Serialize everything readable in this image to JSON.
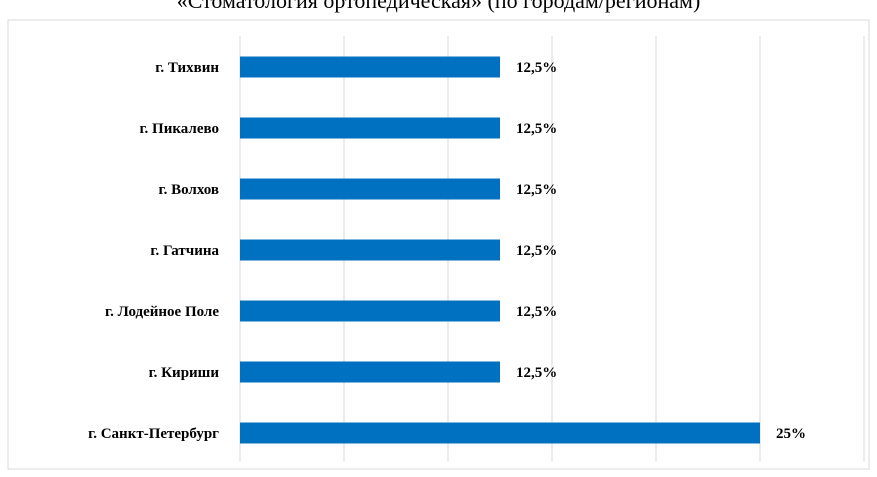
{
  "chart_data": {
    "type": "bar",
    "orientation": "horizontal",
    "title": "«Стоматология ортопедическая» (по городам/регионам)",
    "categories": [
      "г. Тихвин",
      "г. Пикалево",
      "г. Волхов",
      "г. Гатчина",
      "г. Лодейное Поле",
      "г. Кириши",
      "г. Санкт-Петербург"
    ],
    "values": [
      12.5,
      12.5,
      12.5,
      12.5,
      12.5,
      12.5,
      25
    ],
    "data_labels": [
      "12,5%",
      "12,5%",
      "12,5%",
      "12,5%",
      "12,5%",
      "12,5%",
      "25%"
    ],
    "xlim": [
      0,
      30
    ],
    "x_gridline_step": 5,
    "grid": true,
    "x_tick_labels_visible": false,
    "bar_color": "#0070C0",
    "gridline_color": "#d9d9d9"
  }
}
